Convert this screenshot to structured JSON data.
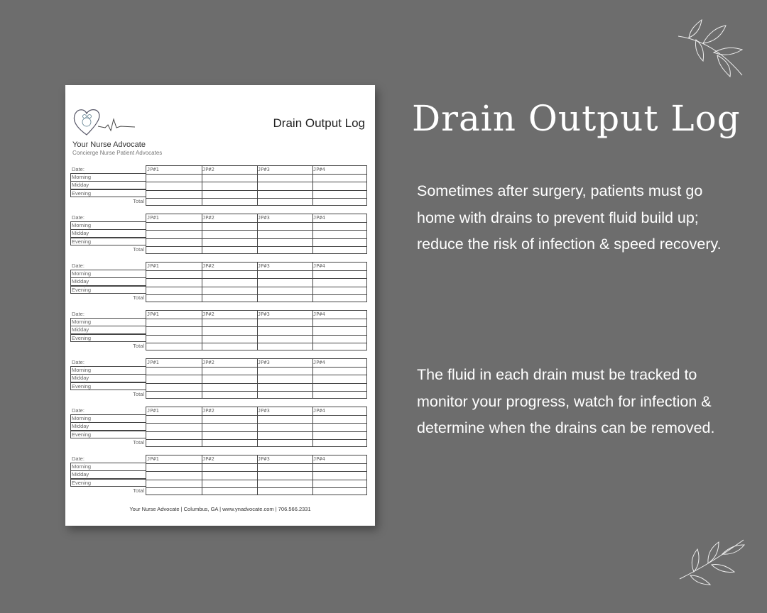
{
  "document": {
    "title": "Drain Output Log",
    "org_name": "Your Nurse Advocate",
    "tagline": "Concierge Nurse Patient Advocates",
    "logo_icon": "heart-family-heartbeat-icon",
    "date_label": "Date:",
    "row_labels": [
      "Morning",
      "Midday",
      "Evening"
    ],
    "total_label": "Total",
    "columns": [
      "JP#1",
      "JP#2",
      "JP#3",
      "JP#4"
    ],
    "block_count": 7,
    "footer": "Your Nurse Advocate | Columbus, GA | www.ynadvocate.com | 706.566.2331"
  },
  "heading": "Drain Output Log",
  "paragraphs": [
    "Sometimes after surgery, patients must go home with drains to prevent fluid build up; reduce the risk of infection & speed recovery.",
    "The fluid in each drain must be tracked to monitor your progress, watch for infection & determine when the drains can be removed."
  ],
  "decorations": [
    "leaf-branch-icon",
    "leaf-branch-icon"
  ],
  "colors": {
    "background": "#6d6d6d",
    "text": "#ffffff"
  }
}
